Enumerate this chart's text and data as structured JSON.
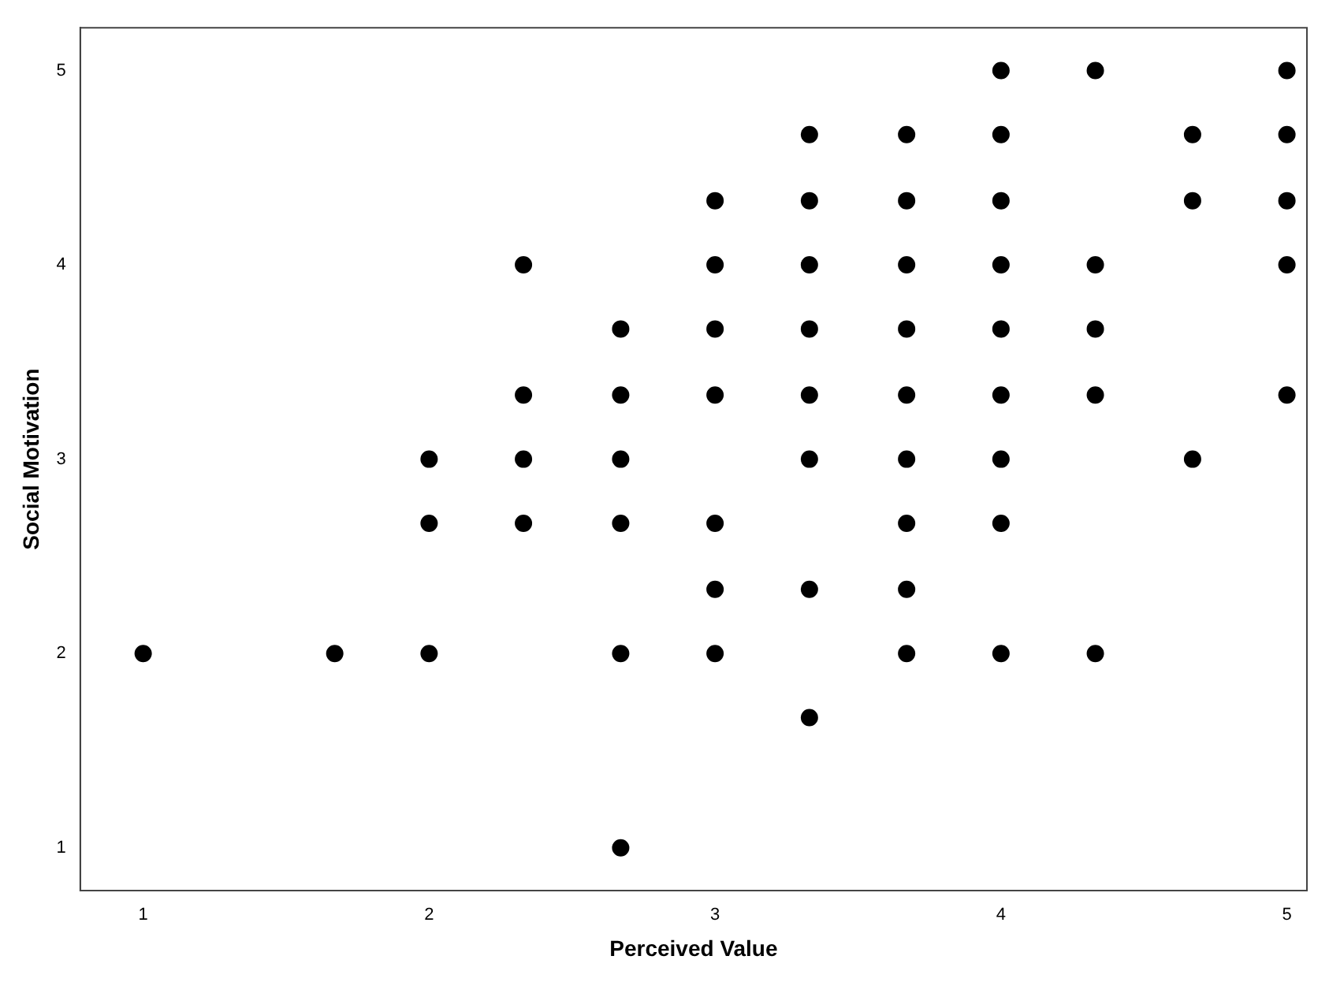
{
  "chart_data": {
    "type": "scatter",
    "xlabel": "Perceived Value",
    "ylabel": "Social Motivation",
    "x": [
      1,
      1.67,
      2,
      2,
      2,
      2.33,
      2.33,
      2.33,
      2.33,
      2.67,
      2.67,
      2.67,
      2.67,
      2.67,
      2.67,
      3,
      3,
      3,
      3,
      3,
      3,
      3,
      3.33,
      3.33,
      3.33,
      3.33,
      3.33,
      3.33,
      3.33,
      3.33,
      3.67,
      3.67,
      3.67,
      3.67,
      3.67,
      3.67,
      3.67,
      3.67,
      3.67,
      4,
      4,
      4,
      4,
      4,
      4,
      4,
      4,
      4,
      4.33,
      4.33,
      4.33,
      4.33,
      4.33,
      4.67,
      4.67,
      4.67,
      5,
      5,
      5,
      5,
      5
    ],
    "values": [
      2,
      2,
      3,
      2.67,
      2,
      4,
      3.33,
      3,
      2.67,
      3.67,
      3.33,
      3,
      2.67,
      2,
      1,
      4.33,
      4,
      3.67,
      3.33,
      2.67,
      2.33,
      2,
      4.67,
      4.33,
      4,
      3.67,
      3.33,
      3,
      2.33,
      1.67,
      4.67,
      4.33,
      4,
      3.67,
      3.33,
      3,
      2.67,
      2.33,
      2,
      5,
      4.67,
      4.33,
      4,
      3.67,
      3.33,
      3,
      2.67,
      2,
      5,
      4,
      3.67,
      3.33,
      2,
      4.67,
      4.33,
      3,
      5,
      4.67,
      4.33,
      4,
      3.33
    ],
    "color": "#000000",
    "marker": "circle",
    "grid": false,
    "legend": false,
    "xlim": [
      0.78,
      5.07
    ],
    "ylim": [
      0.78,
      5.22
    ],
    "xticks": [
      1,
      2,
      3,
      4,
      5
    ],
    "yticks": [
      1,
      2,
      3,
      4,
      5
    ]
  }
}
